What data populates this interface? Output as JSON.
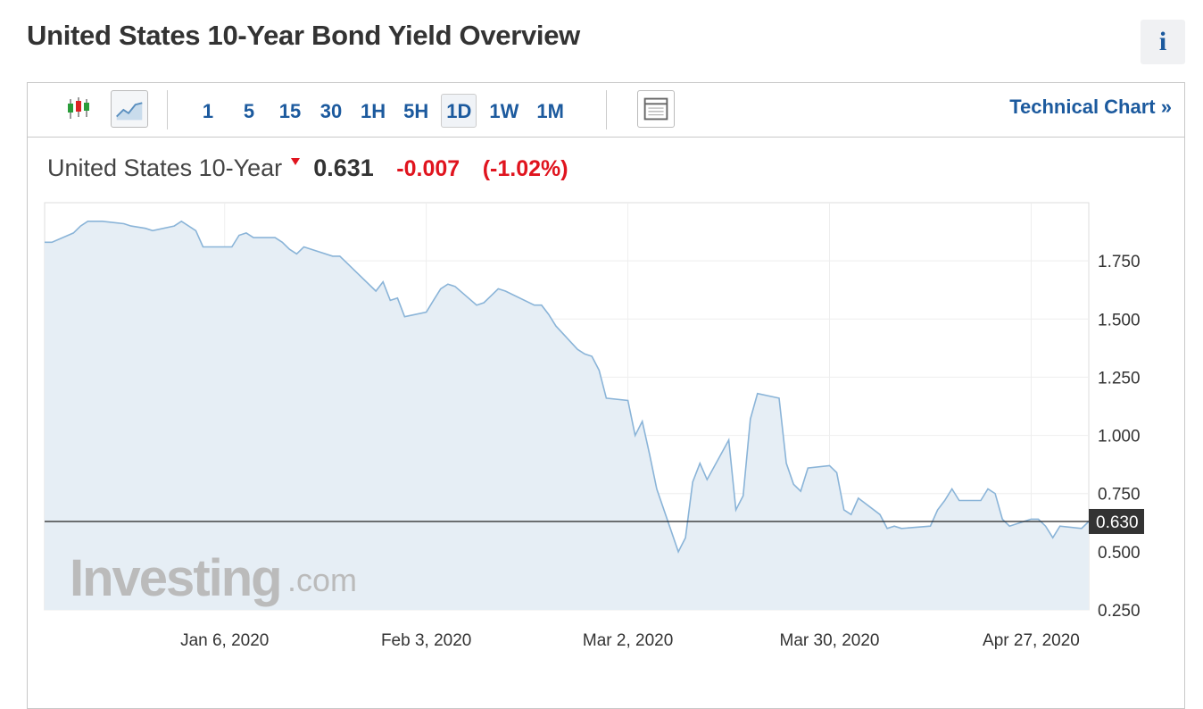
{
  "header": {
    "title": "United States 10-Year Bond Yield Overview",
    "info_icon": "i"
  },
  "toolbar": {
    "intervals": [
      "1",
      "5",
      "15",
      "30",
      "1H",
      "5H",
      "1D",
      "1W",
      "1M"
    ],
    "active": "1D",
    "link": "Technical Chart",
    "link_arrow": "»"
  },
  "quote": {
    "name": "United States 10-Year",
    "price": "0.631",
    "change": "-0.007",
    "change_percent": "(-1.02%)"
  },
  "watermark": {
    "brand": "Investing",
    "suffix": ".com"
  },
  "chart_data": {
    "type": "area",
    "color": "#8ab4d8",
    "fill": "#e6eef5",
    "grid": true,
    "x": [
      "2019-12-12",
      "2019-12-13",
      "2019-12-16",
      "2019-12-17",
      "2019-12-18",
      "2019-12-19",
      "2019-12-20",
      "2019-12-23",
      "2019-12-24",
      "2019-12-26",
      "2019-12-27",
      "2019-12-30",
      "2019-12-31",
      "2020-01-02",
      "2020-01-03",
      "2020-01-06",
      "2020-01-07",
      "2020-01-08",
      "2020-01-09",
      "2020-01-10",
      "2020-01-13",
      "2020-01-14",
      "2020-01-15",
      "2020-01-16",
      "2020-01-17",
      "2020-01-21",
      "2020-01-22",
      "2020-01-23",
      "2020-01-24",
      "2020-01-27",
      "2020-01-28",
      "2020-01-29",
      "2020-01-30",
      "2020-01-31",
      "2020-02-03",
      "2020-02-04",
      "2020-02-05",
      "2020-02-06",
      "2020-02-07",
      "2020-02-10",
      "2020-02-11",
      "2020-02-12",
      "2020-02-13",
      "2020-02-14",
      "2020-02-18",
      "2020-02-19",
      "2020-02-20",
      "2020-02-21",
      "2020-02-24",
      "2020-02-25",
      "2020-02-26",
      "2020-02-27",
      "2020-02-28",
      "2020-03-02",
      "2020-03-03",
      "2020-03-04",
      "2020-03-05",
      "2020-03-06",
      "2020-03-09",
      "2020-03-10",
      "2020-03-11",
      "2020-03-12",
      "2020-03-13",
      "2020-03-16",
      "2020-03-17",
      "2020-03-18",
      "2020-03-19",
      "2020-03-20",
      "2020-03-23",
      "2020-03-24",
      "2020-03-25",
      "2020-03-26",
      "2020-03-27",
      "2020-03-30",
      "2020-03-31",
      "2020-04-01",
      "2020-04-02",
      "2020-04-03",
      "2020-04-06",
      "2020-04-07",
      "2020-04-08",
      "2020-04-09",
      "2020-04-13",
      "2020-04-14",
      "2020-04-15",
      "2020-04-16",
      "2020-04-17",
      "2020-04-20",
      "2020-04-21",
      "2020-04-22",
      "2020-04-23",
      "2020-04-24",
      "2020-04-27",
      "2020-04-28",
      "2020-04-29",
      "2020-04-30",
      "2020-05-01",
      "2020-05-04",
      "2020-05-05"
    ],
    "values": [
      1.83,
      1.83,
      1.87,
      1.9,
      1.92,
      1.92,
      1.92,
      1.91,
      1.9,
      1.89,
      1.88,
      1.9,
      1.92,
      1.88,
      1.81,
      1.81,
      1.81,
      1.86,
      1.87,
      1.85,
      1.85,
      1.83,
      1.8,
      1.78,
      1.81,
      1.77,
      1.77,
      1.74,
      1.71,
      1.62,
      1.66,
      1.58,
      1.59,
      1.51,
      1.53,
      1.58,
      1.63,
      1.65,
      1.64,
      1.56,
      1.57,
      1.6,
      1.63,
      1.62,
      1.56,
      1.56,
      1.52,
      1.47,
      1.37,
      1.35,
      1.34,
      1.28,
      1.16,
      1.15,
      1.0,
      1.06,
      0.92,
      0.77,
      0.5,
      0.56,
      0.8,
      0.88,
      0.81,
      0.98,
      0.68,
      0.74,
      1.07,
      1.18,
      1.16,
      0.88,
      0.79,
      0.76,
      0.86,
      0.87,
      0.84,
      0.68,
      0.66,
      0.73,
      0.66,
      0.6,
      0.61,
      0.6,
      0.61,
      0.68,
      0.72,
      0.77,
      0.72,
      0.72,
      0.77,
      0.75,
      0.64,
      0.61,
      0.64,
      0.64,
      0.61,
      0.56,
      0.61,
      0.6,
      0.63
    ],
    "xlim": [
      "2019-12-12",
      "2020-05-05"
    ],
    "xticks": [
      {
        "value": "2020-01-06",
        "label": "Jan 6, 2020"
      },
      {
        "value": "2020-02-03",
        "label": "Feb 3, 2020"
      },
      {
        "value": "2020-03-02",
        "label": "Mar 2, 2020"
      },
      {
        "value": "2020-03-30",
        "label": "Mar 30, 2020"
      },
      {
        "value": "2020-04-27",
        "label": "Apr 27, 2020"
      }
    ],
    "ylim": [
      0.25,
      2.0
    ],
    "yticks": [
      {
        "value": 0.25,
        "label": "0.250"
      },
      {
        "value": 0.5,
        "label": "0.500"
      },
      {
        "value": 0.75,
        "label": "0.750"
      },
      {
        "value": 1.0,
        "label": "1.000"
      },
      {
        "value": 1.25,
        "label": "1.250"
      },
      {
        "value": 1.5,
        "label": "1.500"
      },
      {
        "value": 1.75,
        "label": "1.750"
      }
    ],
    "last_value": {
      "value": 0.63,
      "label": "0.630"
    }
  }
}
